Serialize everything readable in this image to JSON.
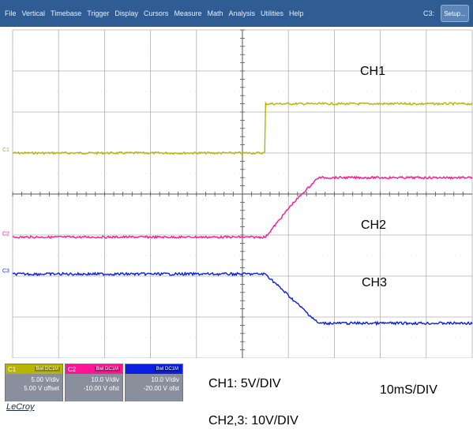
{
  "menu": {
    "items": [
      "File",
      "Vertical",
      "Timebase",
      "Trigger",
      "Display",
      "Cursors",
      "Measure",
      "Math",
      "Analysis",
      "Utilities",
      "Help"
    ],
    "channel_indicator": "C3:",
    "setup_label": "Setup..."
  },
  "grid": {
    "h_divisions": 10,
    "v_divisions": 8
  },
  "traces": [
    {
      "name": "C1",
      "color": "#b8b400",
      "level_before_div": 3.0,
      "level_after_div": 1.8
    },
    {
      "name": "C2",
      "color": "#ff1493",
      "level_before_div": 5.05,
      "level_after_div": 3.6
    },
    {
      "name": "C3",
      "color": "#0a1ee0",
      "level_before_div": 5.95,
      "level_after_div": 7.15
    }
  ],
  "trigger_position_div": 5.5,
  "labels": {
    "ch1": "CH1",
    "ch2": "CH2",
    "ch3": "CH3"
  },
  "annotations": {
    "ch1_scale": "CH1: 5V/DIV",
    "ch23_scale": "CH2,3: 10V/DIV",
    "timebase": "10mS/DIV"
  },
  "channels": [
    {
      "name": "C1",
      "tag": "Bwl DC1M",
      "volts_div": "5.00 V/div",
      "offset": "5.00 V offset",
      "color": "#b8b400"
    },
    {
      "name": "C2",
      "tag": "Bwl DC1M",
      "volts_div": "10.0 V/div",
      "offset": "-10.00 V ofst",
      "color": "#ff1493"
    },
    {
      "name": "",
      "tag": "Bwl DC1M",
      "volts_div": "10.0 V/div",
      "offset": "-20.00 V ofst",
      "color": "#0a1ee0"
    }
  ],
  "brand": "LeCroy"
}
